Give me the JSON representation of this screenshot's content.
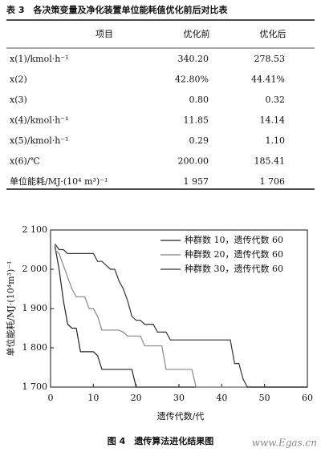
{
  "table": {
    "caption": "表 3　各决策变量及净化装置单位能耗值优化前后对比表",
    "header": [
      "项目",
      "优化前",
      "优化后"
    ],
    "rows": [
      [
        "x(1)/kmol·h⁻¹",
        "340.20",
        "278.53"
      ],
      [
        "x(2)",
        "42.80%",
        "44.41%"
      ],
      [
        "x(3)",
        "0.80",
        "0.32"
      ],
      [
        "x(4)/kmol·h⁻¹",
        "11.85",
        "14.14"
      ],
      [
        "x(5)/kmol·h⁻¹",
        "0.29",
        "1.10"
      ],
      [
        "x(6)/℃",
        "200.00",
        "185.41"
      ],
      [
        "单位能耗/MJ·(10⁴ m³)⁻¹",
        "1 957",
        "1 706"
      ]
    ]
  },
  "chart_data": {
    "type": "line",
    "xlabel": "遗传代数/代",
    "ylabel": "单位能耗/MJ·(10⁴m³)⁻¹",
    "x": [
      1,
      2,
      3,
      4,
      5,
      6,
      7,
      8,
      9,
      10,
      11,
      12,
      13,
      14,
      15,
      16,
      17,
      18,
      19,
      20,
      21,
      22,
      23,
      24,
      25,
      26,
      27,
      28,
      29,
      30,
      31,
      32,
      33,
      34,
      35,
      36,
      37,
      38,
      39,
      40,
      41,
      42,
      43,
      44,
      45,
      46,
      47,
      48,
      49,
      50,
      51,
      52,
      53,
      54,
      55,
      56,
      57,
      58,
      59,
      60
    ],
    "series": [
      {
        "name": "种群数 10，遗传代数 60",
        "color": "#222222",
        "values": [
          2060,
          2000,
          1920,
          1860,
          1850,
          1850,
          1790,
          1790,
          1790,
          1790,
          1780,
          1745,
          1745,
          1745,
          1745,
          1745,
          1745,
          1745,
          1745,
          1700,
          1700,
          1700,
          1700,
          1700,
          1700,
          1700,
          1700,
          1700,
          1700,
          1700,
          1700,
          1700,
          1700,
          1700,
          1700,
          1700,
          1700,
          1700,
          1700,
          1700,
          1700,
          1700,
          1700,
          1700,
          1700,
          1700,
          1700,
          1700,
          1700,
          1700,
          1700,
          1700,
          1700,
          1700,
          1700,
          1700,
          1700,
          1700,
          1700,
          1700
        ]
      },
      {
        "name": "种群数 20，遗传代数 60",
        "color": "#888888",
        "values": [
          2050,
          2040,
          2010,
          1980,
          1950,
          1930,
          1930,
          1930,
          1900,
          1900,
          1880,
          1845,
          1845,
          1845,
          1845,
          1845,
          1840,
          1830,
          1830,
          1830,
          1830,
          1805,
          1805,
          1805,
          1805,
          1805,
          1745,
          1745,
          1745,
          1745,
          1745,
          1745,
          1745,
          1700,
          1700,
          1700,
          1700,
          1700,
          1700,
          1700,
          1700,
          1700,
          1700,
          1700,
          1700,
          1700,
          1700,
          1700,
          1700,
          1700,
          1700,
          1700,
          1700,
          1700,
          1700,
          1700,
          1700,
          1700,
          1700,
          1700
        ]
      },
      {
        "name": "种群数 30，遗传代数 60",
        "color": "#333333",
        "values": [
          2065,
          2050,
          2050,
          2040,
          2040,
          2040,
          2040,
          2040,
          2040,
          2040,
          2020,
          2020,
          2010,
          2000,
          2000,
          1970,
          1950,
          1920,
          1880,
          1870,
          1870,
          1860,
          1860,
          1860,
          1840,
          1840,
          1840,
          1820,
          1820,
          1820,
          1820,
          1820,
          1820,
          1820,
          1820,
          1820,
          1820,
          1820,
          1820,
          1820,
          1820,
          1820,
          1760,
          1760,
          1720,
          1700,
          1700,
          1700,
          1700,
          1700,
          1700,
          1700,
          1700,
          1700,
          1700,
          1700,
          1700,
          1700,
          1700,
          1700
        ]
      }
    ],
    "xlim": [
      0,
      60
    ],
    "xticks": [
      0,
      10,
      20,
      30,
      40,
      50,
      60
    ],
    "ylim": [
      1700,
      2100
    ],
    "yticks": [
      {
        "value": 1700,
        "label": "1 700"
      },
      {
        "value": 1800,
        "label": "1 800"
      },
      {
        "value": 1900,
        "label": "1 900"
      },
      {
        "value": 2000,
        "label": "2 000"
      },
      {
        "value": 2100,
        "label": "2 100"
      }
    ],
    "legend": "upper right"
  },
  "figure_caption": "图 4　遗传算法进化结果图",
  "watermark": "www.Egas.cn"
}
